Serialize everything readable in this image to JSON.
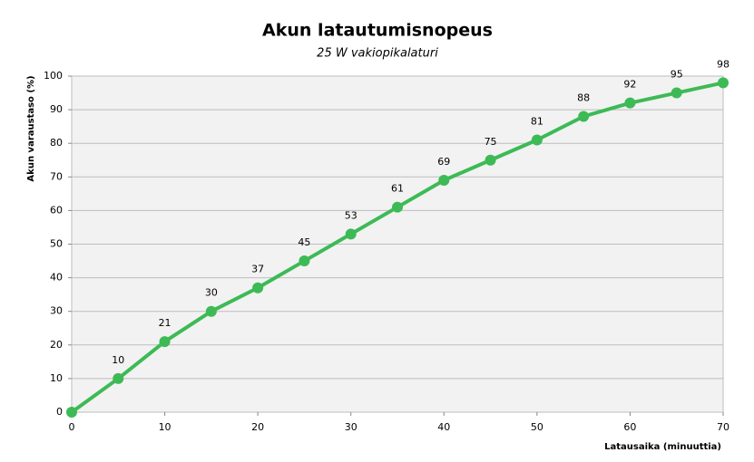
{
  "chart_data": {
    "type": "line",
    "title": "Akun latautumisnopeus",
    "subtitle": "25 W vakiopikalaturi",
    "xlabel": "Latausaika  (minuuttia)",
    "ylabel": "Akun varaustaso  (%)",
    "x": [
      0,
      5,
      10,
      15,
      20,
      25,
      30,
      35,
      40,
      45,
      50,
      55,
      60,
      65,
      70
    ],
    "series": [
      {
        "name": "Akun varaustaso",
        "color": "#3dba55",
        "values": [
          0,
          10,
          21,
          30,
          37,
          45,
          53,
          61,
          69,
          75,
          81,
          88,
          92,
          95,
          98
        ],
        "value_labels": [
          null,
          10,
          21,
          30,
          37,
          45,
          53,
          61,
          69,
          75,
          81,
          88,
          92,
          95,
          98
        ]
      }
    ],
    "xlim": [
      0,
      70
    ],
    "xticks": [
      0,
      10,
      20,
      30,
      40,
      50,
      60,
      70
    ],
    "ylim": [
      0,
      100
    ],
    "yticks": [
      0,
      10,
      20,
      30,
      40,
      50,
      60,
      70,
      80,
      90,
      100
    ],
    "grid": true
  }
}
